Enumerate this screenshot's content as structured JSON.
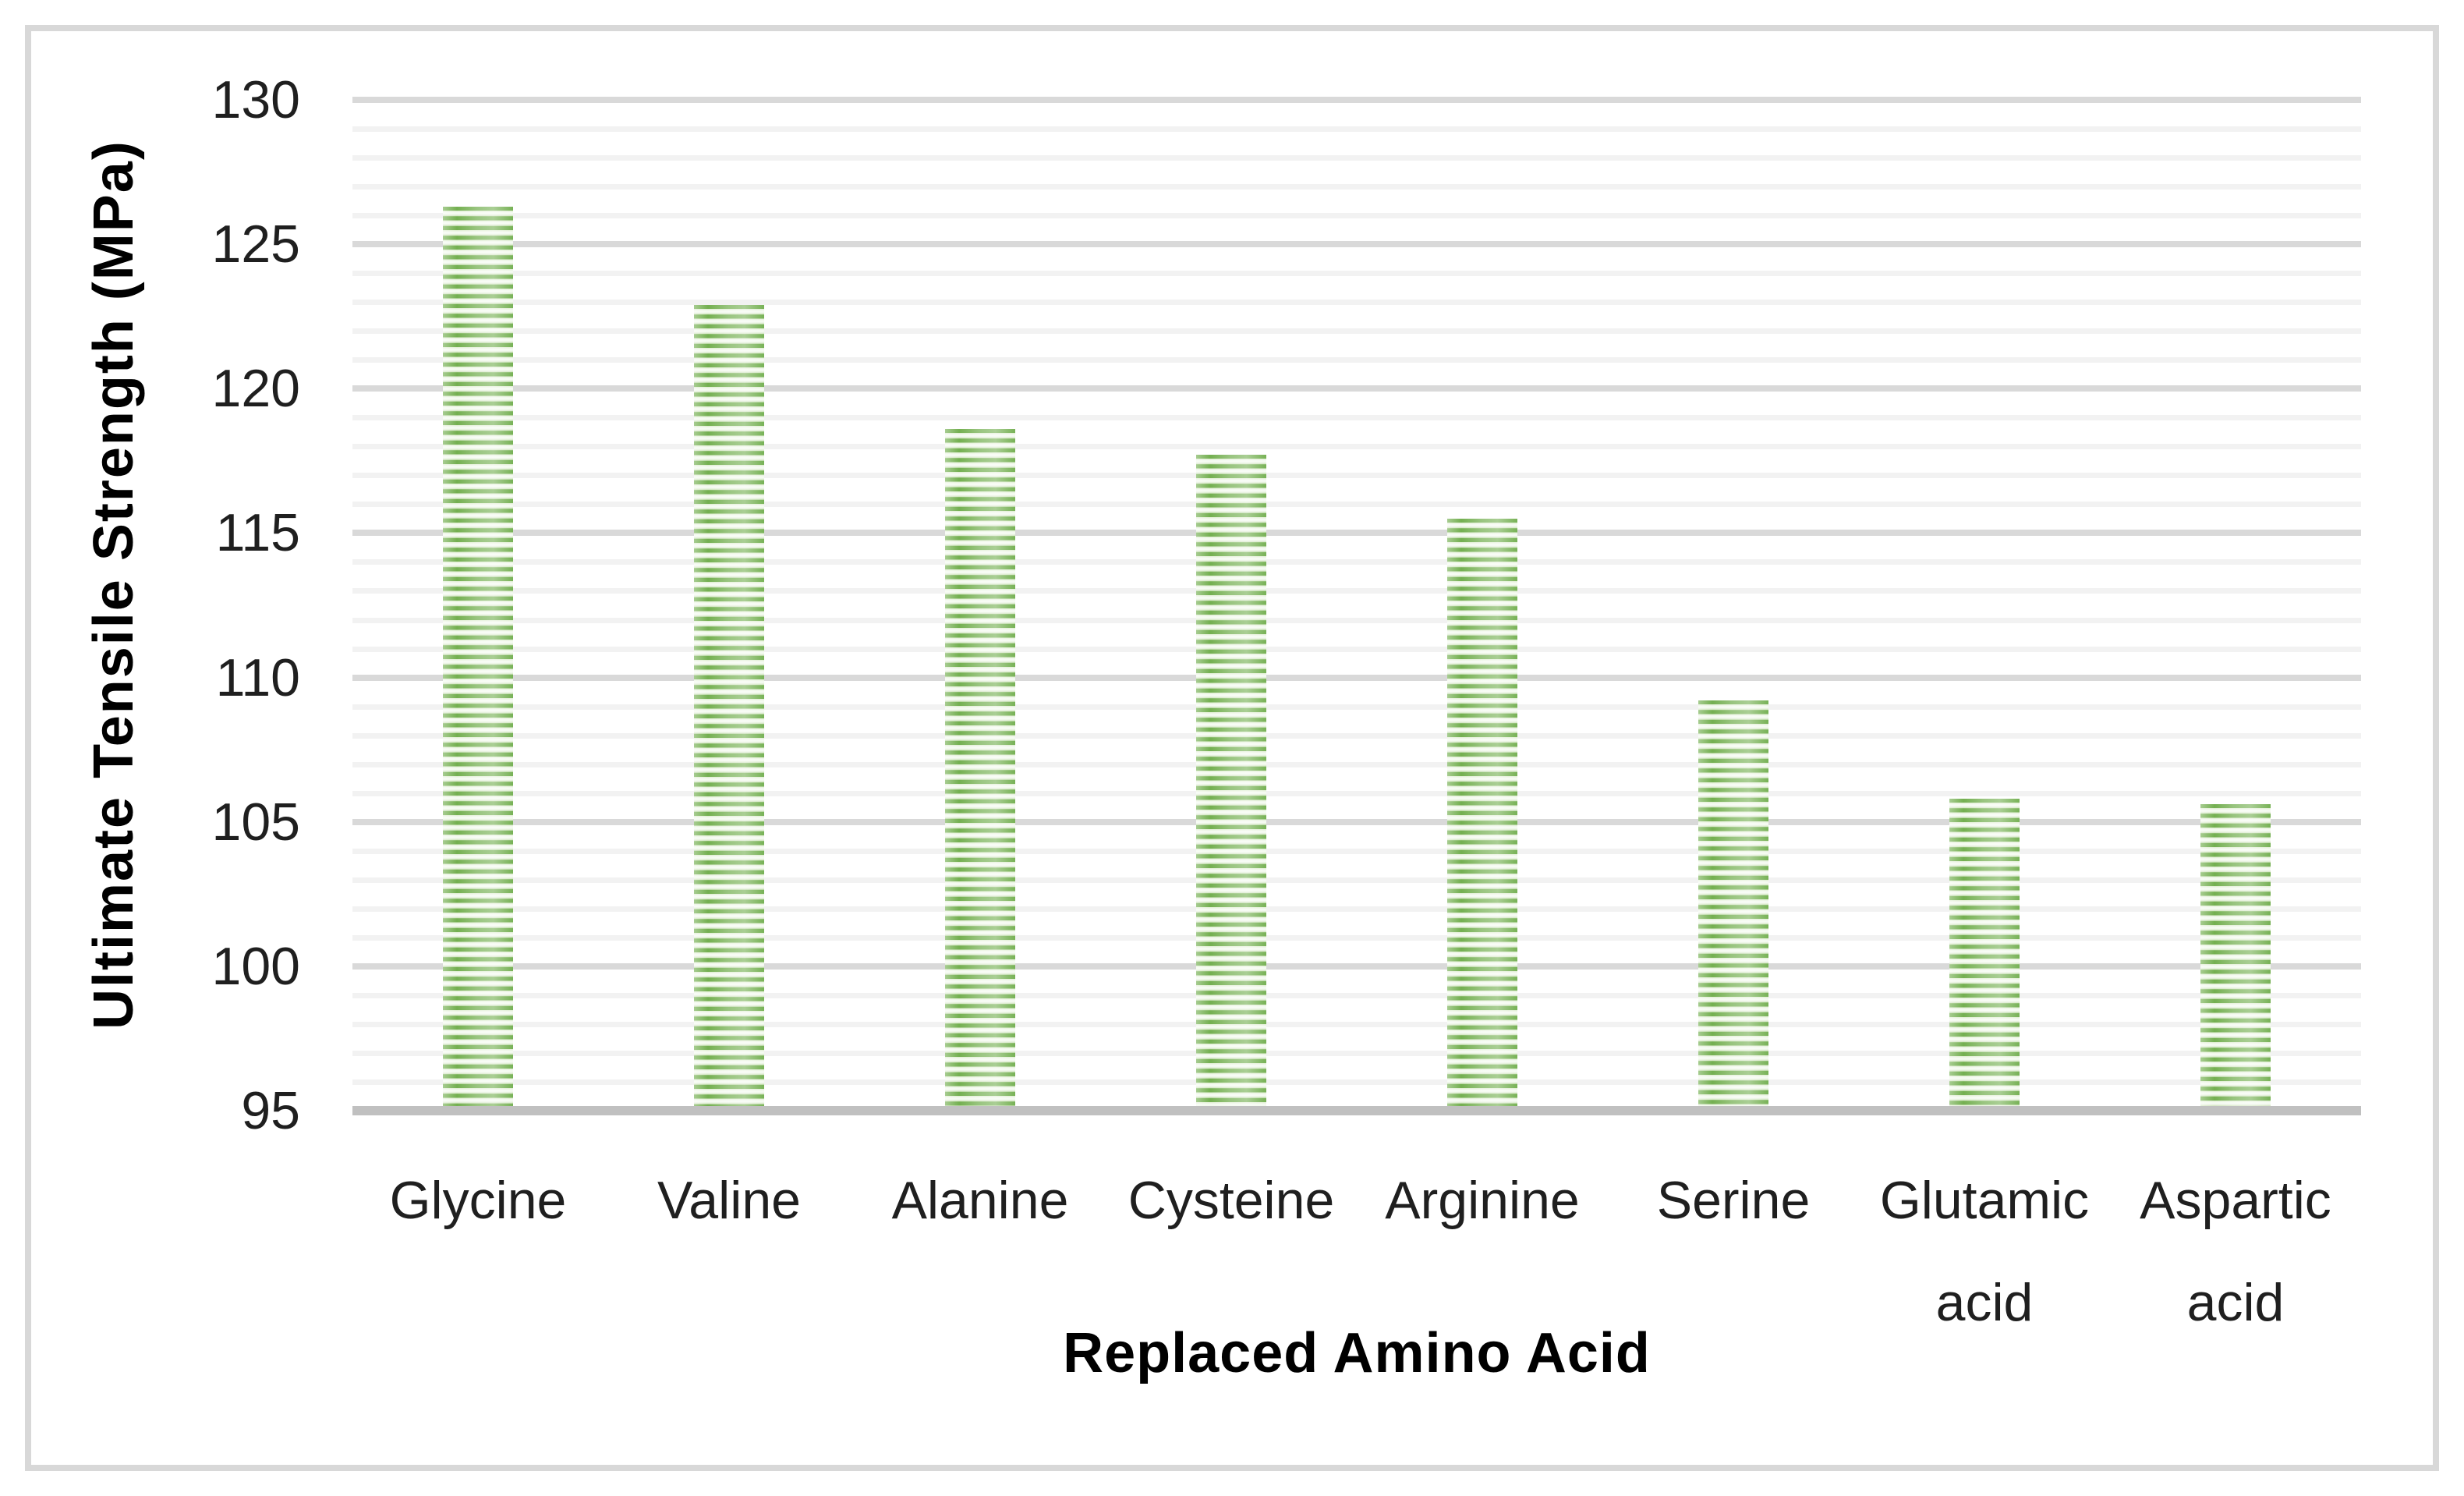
{
  "chart_data": {
    "type": "bar",
    "title": "",
    "xlabel": "Replaced Amino Acid",
    "ylabel": "Ultimate Tensile Strength (MPa)",
    "categories": [
      "Glycine",
      "Valine",
      "Alanine",
      "Cysteine",
      "Arginine",
      "Serine",
      "Glutamic acid",
      "Aspartic acid"
    ],
    "values": [
      126.3,
      122.9,
      118.6,
      117.7,
      115.5,
      109.2,
      105.8,
      105.6
    ],
    "ylim": [
      95,
      130
    ],
    "y_ticks": [
      95,
      100,
      105,
      110,
      115,
      120,
      125,
      130
    ],
    "y_major_step": 5,
    "y_minor_step": 1,
    "grid": "horizontal, major and minor",
    "legend": false,
    "bar_fill_style": "horizontal green stripes",
    "colors": {
      "bar_green": "#6cab47",
      "bar_stripe_light": "#f4faf0",
      "major_gridline": "#d9d9d9",
      "minor_gridline": "#f2f2f2",
      "axis_baseline": "#c0c0c0",
      "frame_border": "#d8d8d8",
      "tick_text": "#1f1f1f",
      "title_text": "#000000",
      "background": "#ffffff"
    }
  }
}
